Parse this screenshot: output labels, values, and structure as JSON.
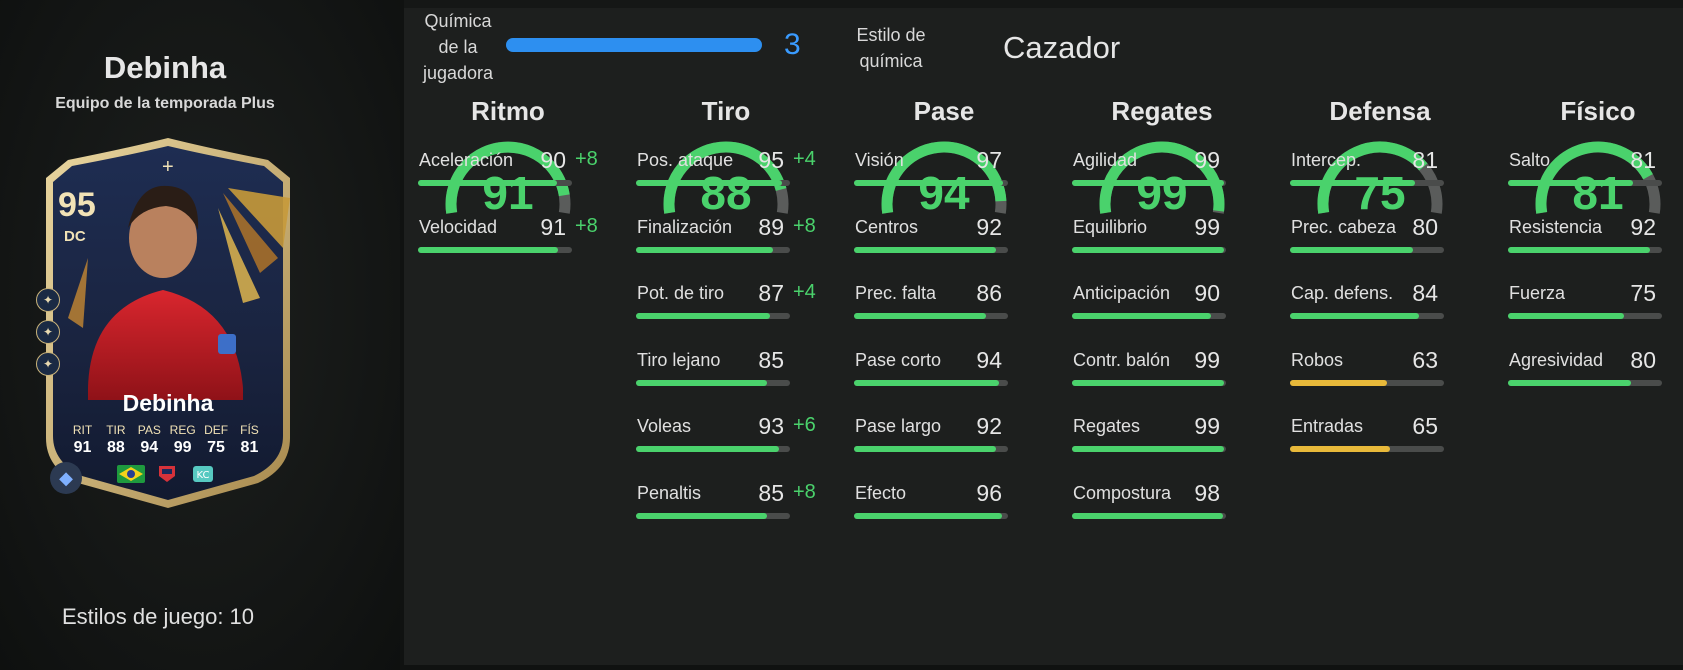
{
  "player": {
    "name": "Debinha",
    "subtitle": "Equipo de la temporada Plus",
    "playstyles_label": "Estilos de juego: 10"
  },
  "card": {
    "rating": "95",
    "position": "DC",
    "plus": "+",
    "name": "Debinha",
    "stats": [
      {
        "label": "RIT",
        "value": "91"
      },
      {
        "label": "TIR",
        "value": "88"
      },
      {
        "label": "PAS",
        "value": "94"
      },
      {
        "label": "REG",
        "value": "99"
      },
      {
        "label": "DEF",
        "value": "75"
      },
      {
        "label": "FÍS",
        "value": "81"
      }
    ],
    "flags": [
      "brazil-flag",
      "club-badge",
      "league-badge"
    ]
  },
  "chemistry": {
    "label_line1": "Química",
    "label_line2": "de la",
    "label_line3": "jugadora",
    "value": "3",
    "progress": 1.0,
    "color": "#2d8ff0"
  },
  "chem_style": {
    "label_line1": "Estilo de",
    "label_line2": "química",
    "value": "Cazador"
  },
  "colors": {
    "green": "#4ad26c",
    "yellow": "#e8b93a",
    "track": "#4a4c4b"
  },
  "categories": [
    {
      "title": "Ritmo",
      "value": 91,
      "stats": [
        {
          "name": "Aceleración",
          "value": 90,
          "bonus": "+8"
        },
        {
          "name": "Velocidad",
          "value": 91,
          "bonus": "+8"
        }
      ]
    },
    {
      "title": "Tiro",
      "value": 88,
      "stats": [
        {
          "name": "Pos. ataque",
          "value": 95,
          "bonus": "+4"
        },
        {
          "name": "Finalización",
          "value": 89,
          "bonus": "+8"
        },
        {
          "name": "Pot. de tiro",
          "value": 87,
          "bonus": "+4"
        },
        {
          "name": "Tiro lejano",
          "value": 85,
          "bonus": ""
        },
        {
          "name": "Voleas",
          "value": 93,
          "bonus": "+6"
        },
        {
          "name": "Penaltis",
          "value": 85,
          "bonus": "+8"
        }
      ]
    },
    {
      "title": "Pase",
      "value": 94,
      "stats": [
        {
          "name": "Visión",
          "value": 97,
          "bonus": ""
        },
        {
          "name": "Centros",
          "value": 92,
          "bonus": ""
        },
        {
          "name": "Prec. falta",
          "value": 86,
          "bonus": ""
        },
        {
          "name": "Pase corto",
          "value": 94,
          "bonus": ""
        },
        {
          "name": "Pase largo",
          "value": 92,
          "bonus": ""
        },
        {
          "name": "Efecto",
          "value": 96,
          "bonus": ""
        }
      ]
    },
    {
      "title": "Regates",
      "value": 99,
      "stats": [
        {
          "name": "Agilidad",
          "value": 99,
          "bonus": ""
        },
        {
          "name": "Equilibrio",
          "value": 99,
          "bonus": ""
        },
        {
          "name": "Anticipación",
          "value": 90,
          "bonus": ""
        },
        {
          "name": "Contr. balón",
          "value": 99,
          "bonus": ""
        },
        {
          "name": "Regates",
          "value": 99,
          "bonus": ""
        },
        {
          "name": "Compostura",
          "value": 98,
          "bonus": ""
        }
      ]
    },
    {
      "title": "Defensa",
      "value": 75,
      "stats": [
        {
          "name": "Intercep.",
          "value": 81,
          "bonus": ""
        },
        {
          "name": "Prec. cabeza",
          "value": 80,
          "bonus": ""
        },
        {
          "name": "Cap. defens.",
          "value": 84,
          "bonus": ""
        },
        {
          "name": "Robos",
          "value": 63,
          "bonus": ""
        },
        {
          "name": "Entradas",
          "value": 65,
          "bonus": ""
        }
      ]
    },
    {
      "title": "Físico",
      "value": 81,
      "stats": [
        {
          "name": "Salto",
          "value": 81,
          "bonus": ""
        },
        {
          "name": "Resistencia",
          "value": 92,
          "bonus": ""
        },
        {
          "name": "Fuerza",
          "value": 75,
          "bonus": ""
        },
        {
          "name": "Agresividad",
          "value": 80,
          "bonus": ""
        }
      ]
    }
  ]
}
